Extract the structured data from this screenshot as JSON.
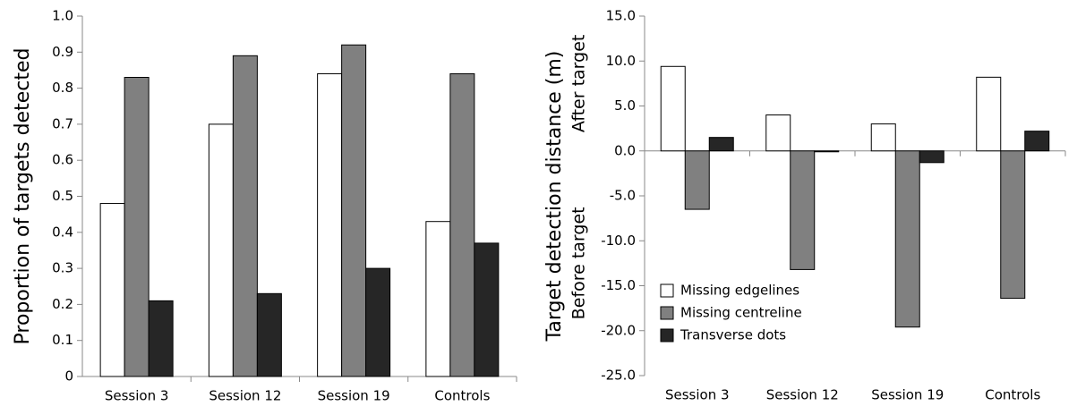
{
  "chart_data": [
    {
      "type": "bar",
      "ylabel": "Proportion of targets detected",
      "categories": [
        "Session 3",
        "Session 12",
        "Session 19",
        "Controls"
      ],
      "series": [
        {
          "color": "#ffffff",
          "values": [
            0.48,
            0.7,
            0.84,
            0.43
          ]
        },
        {
          "color": "#808080",
          "values": [
            0.83,
            0.89,
            0.92,
            0.84
          ]
        },
        {
          "color": "#262626",
          "values": [
            0.21,
            0.23,
            0.3,
            0.37
          ]
        }
      ],
      "ylim": [
        0,
        1
      ],
      "yticks": [
        0,
        0.1,
        0.2,
        0.3,
        0.4,
        0.5,
        0.6,
        0.7,
        0.8,
        0.9,
        {
          "value": 1,
          "label": "1.0"
        }
      ]
    },
    {
      "type": "bar",
      "ylabel": "Target detection distance (m)",
      "annotations": [
        "After target",
        "Before target"
      ],
      "categories": [
        "Session 3",
        "Session 12",
        "Session 19",
        "Controls"
      ],
      "series": [
        {
          "name": "Missing edgelines",
          "color": "#ffffff",
          "values": [
            9.4,
            4.0,
            3.0,
            8.2
          ]
        },
        {
          "name": "Missing centreline",
          "color": "#808080",
          "values": [
            -6.5,
            -13.2,
            -19.6,
            -16.4
          ]
        },
        {
          "name": "Transverse dots",
          "color": "#262626",
          "values": [
            1.5,
            -0.1,
            -1.3,
            2.2
          ]
        }
      ],
      "ylim": [
        -25,
        15
      ],
      "yticks": [
        {
          "value": -25,
          "label": "-25.0"
        },
        {
          "value": -20,
          "label": "-20.0"
        },
        {
          "value": -15,
          "label": "-15.0"
        },
        {
          "value": -10,
          "label": "-10.0"
        },
        {
          "value": -5,
          "label": "-5.0"
        },
        {
          "value": 0,
          "label": "0.0"
        },
        {
          "value": 5,
          "label": "5.0"
        },
        {
          "value": 10,
          "label": "10.0"
        },
        {
          "value": 15,
          "label": "15.0"
        }
      ],
      "legend": "lower left"
    }
  ]
}
